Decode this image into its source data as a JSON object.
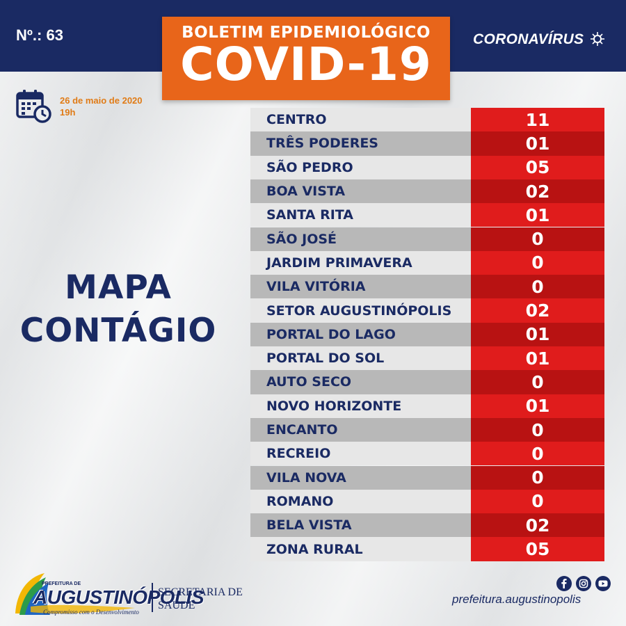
{
  "header": {
    "bulletin_number": "Nº.: 63",
    "title_top": "BOLETIM EPIDEMIOLÓGICO",
    "title_main": "COVID-19",
    "brand": "CORONAVÍRUS"
  },
  "date": {
    "day": "26 de maio de 2020",
    "time": "19h"
  },
  "heading": {
    "line1": "MAPA",
    "line2": "CONTÁGIO"
  },
  "neighborhoods": [
    {
      "name": "CENTRO",
      "cases": "11"
    },
    {
      "name": "TRÊS PODERES",
      "cases": "01"
    },
    {
      "name": "SÃO PEDRO",
      "cases": "05"
    },
    {
      "name": "BOA VISTA",
      "cases": "02"
    },
    {
      "name": "SANTA RITA",
      "cases": "01"
    },
    {
      "name": "SÃO JOSÉ",
      "cases": "0"
    },
    {
      "name": "JARDIM PRIMAVERA",
      "cases": "0"
    },
    {
      "name": "VILA VITÓRIA",
      "cases": "0"
    },
    {
      "name": "SETOR AUGUSTINÓPOLIS",
      "cases": "02"
    },
    {
      "name": "PORTAL DO LAGO",
      "cases": "01"
    },
    {
      "name": "PORTAL DO SOL",
      "cases": "01"
    },
    {
      "name": "AUTO SECO",
      "cases": "0"
    },
    {
      "name": "NOVO HORIZONTE",
      "cases": "01"
    },
    {
      "name": "ENCANTO",
      "cases": "0"
    },
    {
      "name": "RECREIO",
      "cases": "0"
    },
    {
      "name": "VILA NOVA",
      "cases": "0"
    },
    {
      "name": "ROMANO",
      "cases": "0"
    },
    {
      "name": "BELA VISTA",
      "cases": "02"
    },
    {
      "name": "ZONA RURAL",
      "cases": "05"
    }
  ],
  "footer": {
    "logo_small": "PREFEITURA DE",
    "logo_name": "AUGUSTINÓPOLIS",
    "logo_tagline": "Compromisso com o Desenvolvimento",
    "dept_line1": "SECRETARIA DE",
    "dept_line2": "SAÚDE",
    "website": "prefeitura.augustinopolis",
    "social_icons": [
      "facebook-icon",
      "instagram-icon",
      "youtube-icon"
    ]
  },
  "colors": {
    "navy": "#1a2a63",
    "orange": "#e8651a",
    "red": "#e01c1c",
    "dark_red": "#b81212",
    "date_orange": "#e07b16"
  }
}
